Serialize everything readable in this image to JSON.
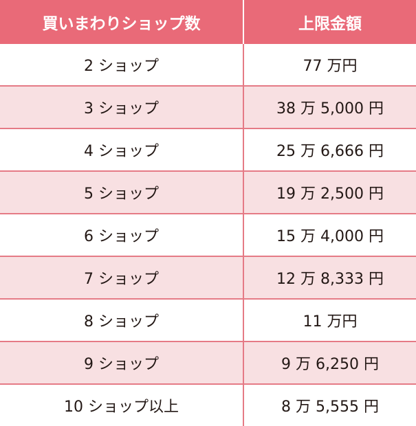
{
  "colors": {
    "header_bg": "#e96a78",
    "alt_row_bg": "#f8e0e2",
    "border": "#e57a85"
  },
  "table": {
    "headers": [
      "買いまわりショップ数",
      "上限金額"
    ],
    "rows": [
      [
        "2 ショップ",
        "77 万円"
      ],
      [
        "3 ショップ",
        "38 万 5,000 円"
      ],
      [
        "4 ショップ",
        "25 万 6,666 円"
      ],
      [
        "5 ショップ",
        "19 万 2,500 円"
      ],
      [
        "6 ショップ",
        "15 万 4,000 円"
      ],
      [
        "7 ショップ",
        "12 万 8,333 円"
      ],
      [
        "8 ショップ",
        "11 万円"
      ],
      [
        "9 ショップ",
        "9 万 6,250 円"
      ],
      [
        "10 ショップ以上",
        "8 万 5,555 円"
      ]
    ]
  }
}
